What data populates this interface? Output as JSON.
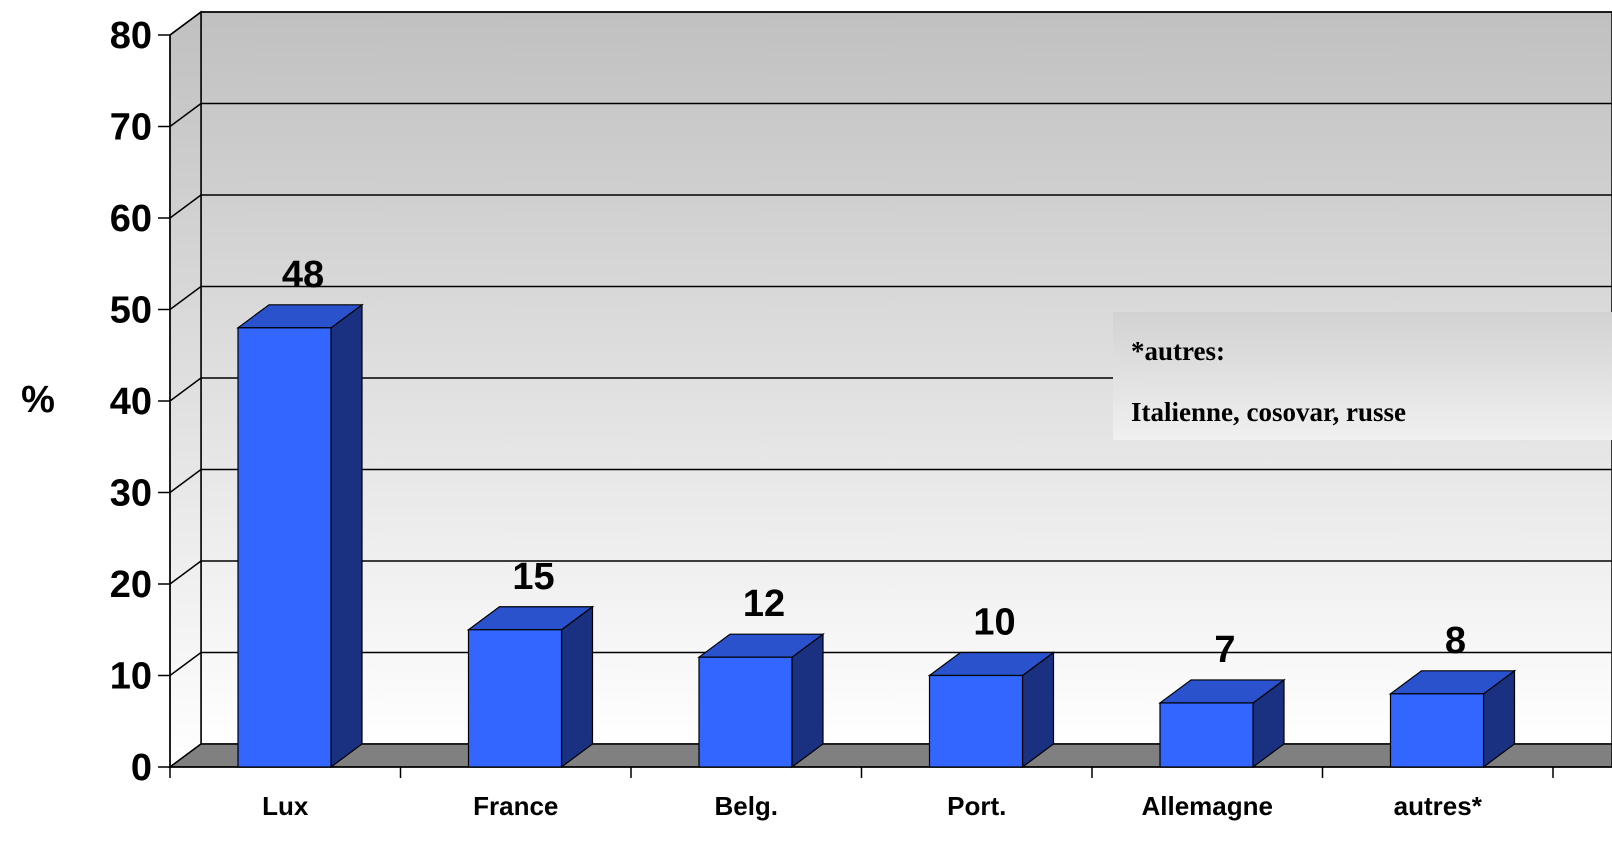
{
  "chart_data": {
    "type": "bar",
    "categories": [
      "Lux",
      "France",
      "Belg.",
      "Port.",
      "Allemagne",
      "autres*"
    ],
    "values": [
      48,
      15,
      12,
      10,
      7,
      8
    ],
    "value_labels": [
      "48",
      "15",
      "12",
      "10",
      "7",
      "8"
    ],
    "ylabel": "%",
    "xlabel": "",
    "ylim": [
      0,
      80
    ],
    "yticks": [
      0,
      10,
      20,
      30,
      40,
      50,
      60,
      70,
      80
    ],
    "ytick_labels": [
      "0",
      "10",
      "20",
      "30",
      "40",
      "50",
      "60",
      "70",
      "80"
    ],
    "grid": true,
    "style": "3d-column",
    "colors": {
      "bar_front": "#3366ff",
      "bar_top": "#2a52cc",
      "bar_side": "#1a3080",
      "floor": "#808080",
      "wall_top": "#c0c0c0",
      "wall_bottom": "#ffffff"
    },
    "annotation": {
      "title": "*autres:",
      "text": "Italienne, cosovar, russe"
    }
  }
}
